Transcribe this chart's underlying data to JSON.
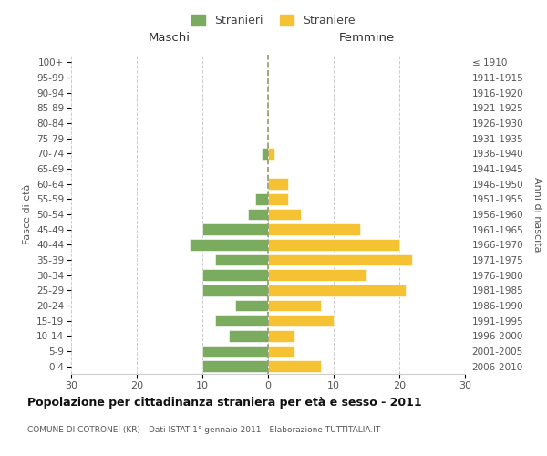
{
  "age_groups": [
    "0-4",
    "5-9",
    "10-14",
    "15-19",
    "20-24",
    "25-29",
    "30-34",
    "35-39",
    "40-44",
    "45-49",
    "50-54",
    "55-59",
    "60-64",
    "65-69",
    "70-74",
    "75-79",
    "80-84",
    "85-89",
    "90-94",
    "95-99",
    "100+"
  ],
  "birth_years": [
    "2006-2010",
    "2001-2005",
    "1996-2000",
    "1991-1995",
    "1986-1990",
    "1981-1985",
    "1976-1980",
    "1971-1975",
    "1966-1970",
    "1961-1965",
    "1956-1960",
    "1951-1955",
    "1946-1950",
    "1941-1945",
    "1936-1940",
    "1931-1935",
    "1926-1930",
    "1921-1925",
    "1916-1920",
    "1911-1915",
    "≤ 1910"
  ],
  "males": [
    10,
    10,
    6,
    8,
    5,
    10,
    10,
    8,
    12,
    10,
    3,
    2,
    0,
    0,
    1,
    0,
    0,
    0,
    0,
    0,
    0
  ],
  "females": [
    8,
    4,
    4,
    10,
    8,
    21,
    15,
    22,
    20,
    14,
    5,
    3,
    3,
    0,
    1,
    0,
    0,
    0,
    0,
    0,
    0
  ],
  "male_color": "#7aab5e",
  "female_color": "#f5c234",
  "title": "Popolazione per cittadinanza straniera per età e sesso - 2011",
  "subtitle": "COMUNE DI COTRONEI (KR) - Dati ISTAT 1° gennaio 2011 - Elaborazione TUTTITALIA.IT",
  "xlabel_left": "Maschi",
  "xlabel_right": "Femmine",
  "ylabel_left": "Fasce di età",
  "ylabel_right": "Anni di nascita",
  "legend_males": "Stranieri",
  "legend_females": "Straniere",
  "xlim": 30,
  "background_color": "#ffffff",
  "grid_color": "#cccccc"
}
